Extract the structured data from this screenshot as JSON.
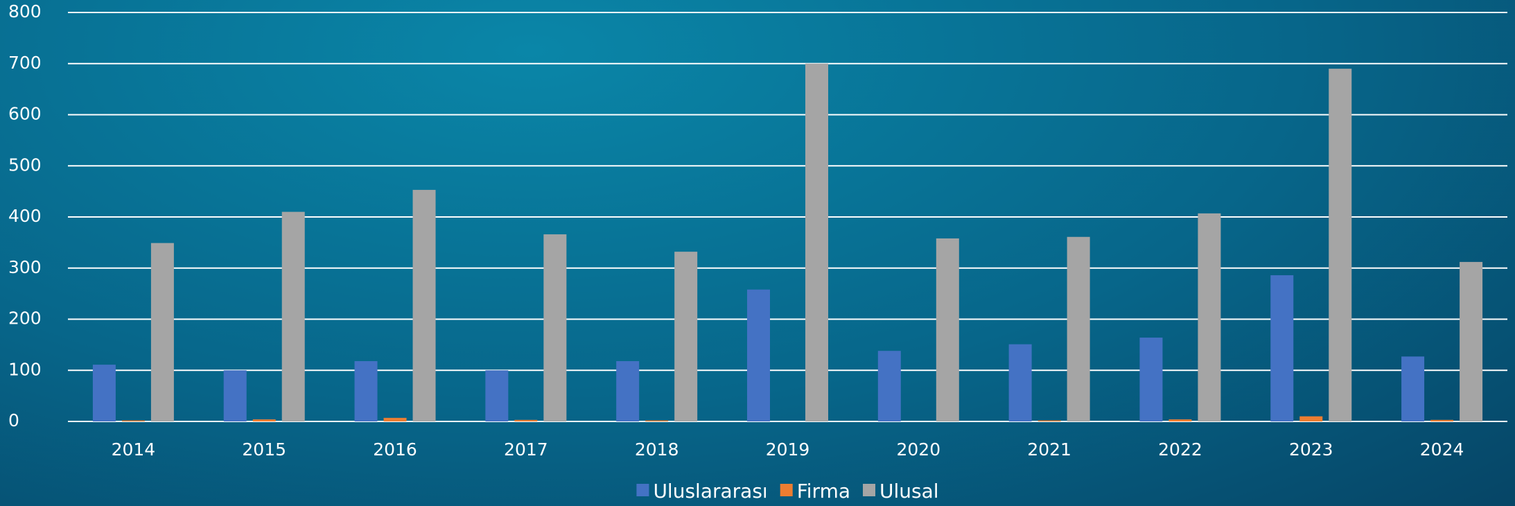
{
  "chart_data": {
    "type": "bar",
    "categories": [
      "2014",
      "2015",
      "2016",
      "2017",
      "2018",
      "2019",
      "2020",
      "2021",
      "2022",
      "2023",
      "2024"
    ],
    "series": [
      {
        "name": "Uluslararası",
        "color": "#4472c4",
        "values": [
          111,
          100,
          118,
          100,
          118,
          258,
          138,
          151,
          164,
          286,
          127
        ]
      },
      {
        "name": "Firma",
        "color": "#ed7d31",
        "values": [
          2,
          4,
          7,
          3,
          2,
          0,
          0,
          2,
          4,
          10,
          3
        ]
      },
      {
        "name": "Ulusal",
        "color": "#a5a5a5",
        "values": [
          349,
          410,
          453,
          366,
          332,
          700,
          358,
          361,
          407,
          690,
          312
        ]
      }
    ],
    "ylim": [
      0,
      800
    ],
    "yticks": [
      0,
      100,
      200,
      300,
      400,
      500,
      600,
      700,
      800
    ],
    "grid": true,
    "legend": "bottom"
  }
}
